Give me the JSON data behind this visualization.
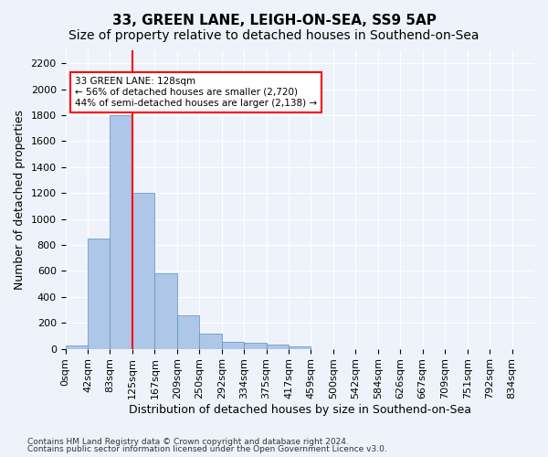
{
  "title": "33, GREEN LANE, LEIGH-ON-SEA, SS9 5AP",
  "subtitle": "Size of property relative to detached houses in Southend-on-Sea",
  "xlabel": "Distribution of detached houses by size in Southend-on-Sea",
  "ylabel": "Number of detached properties",
  "bar_values": [
    25,
    850,
    1800,
    1200,
    585,
    260,
    115,
    50,
    45,
    30,
    15,
    0,
    0,
    0,
    0,
    0,
    0,
    0,
    0,
    0,
    0
  ],
  "bar_labels": [
    "0sqm",
    "42sqm",
    "83sqm",
    "125sqm",
    "167sqm",
    "209sqm",
    "250sqm",
    "292sqm",
    "334sqm",
    "375sqm",
    "417sqm",
    "459sqm",
    "500sqm",
    "542sqm",
    "584sqm",
    "626sqm",
    "667sqm",
    "709sqm",
    "751sqm",
    "792sqm",
    "834sqm"
  ],
  "bar_color": "#aec6e8",
  "bar_edgecolor": "#5a8fbb",
  "vline_x": 3,
  "vline_color": "red",
  "annotation_text": "33 GREEN LANE: 128sqm\n← 56% of detached houses are smaller (2,720)\n44% of semi-detached houses are larger (2,138) →",
  "annotation_box_color": "white",
  "annotation_box_edgecolor": "red",
  "ylim": [
    0,
    2300
  ],
  "yticks": [
    0,
    200,
    400,
    600,
    800,
    1000,
    1200,
    1400,
    1600,
    1800,
    2000,
    2200
  ],
  "footer1": "Contains HM Land Registry data © Crown copyright and database right 2024.",
  "footer2": "Contains public sector information licensed under the Open Government Licence v3.0.",
  "bg_color": "#eef3fb",
  "grid_color": "#ffffff",
  "title_fontsize": 11,
  "subtitle_fontsize": 10,
  "label_fontsize": 9,
  "tick_fontsize": 8
}
